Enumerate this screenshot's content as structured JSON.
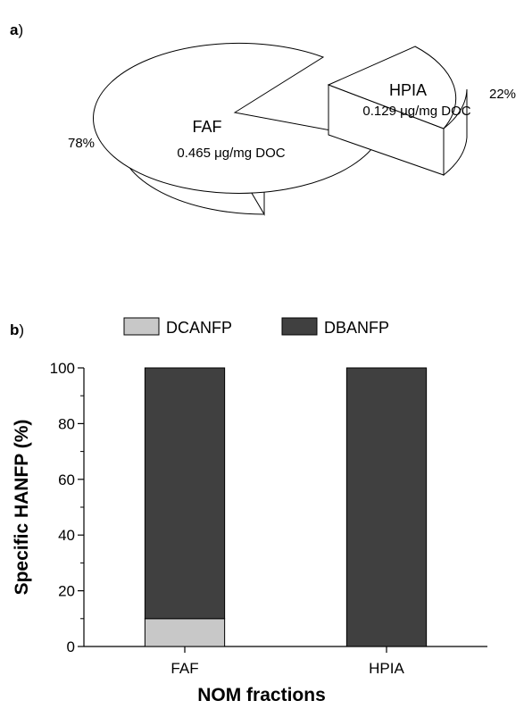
{
  "chart_data": [
    {
      "panel_label": "a",
      "type": "pie",
      "style": "3d-exploded",
      "slices": [
        {
          "label": "FAF",
          "value": 78,
          "value_label": "78%",
          "detail": "0.465 μg/mg DOC",
          "color": "#ffffff"
        },
        {
          "label": "HPIA",
          "value": 22,
          "value_label": "22%",
          "detail": "0.129 μg/mg DOC",
          "color": "#ffffff"
        }
      ]
    },
    {
      "panel_label": "b",
      "type": "bar",
      "stacked": true,
      "categories": [
        "FAF",
        "HPIA"
      ],
      "series": [
        {
          "name": "DCANFP",
          "values": [
            10,
            0
          ],
          "color": "#c8c8c8"
        },
        {
          "name": "DBANFP",
          "values": [
            90,
            100
          ],
          "color": "#404040"
        }
      ],
      "xlabel": "NOM fractions",
      "ylabel": "Specific HANFP (%)",
      "ylim": [
        0,
        100
      ],
      "yticks": [
        "0",
        "20",
        "40",
        "60",
        "80",
        "100"
      ],
      "legend_position": "top",
      "grid": false
    }
  ]
}
